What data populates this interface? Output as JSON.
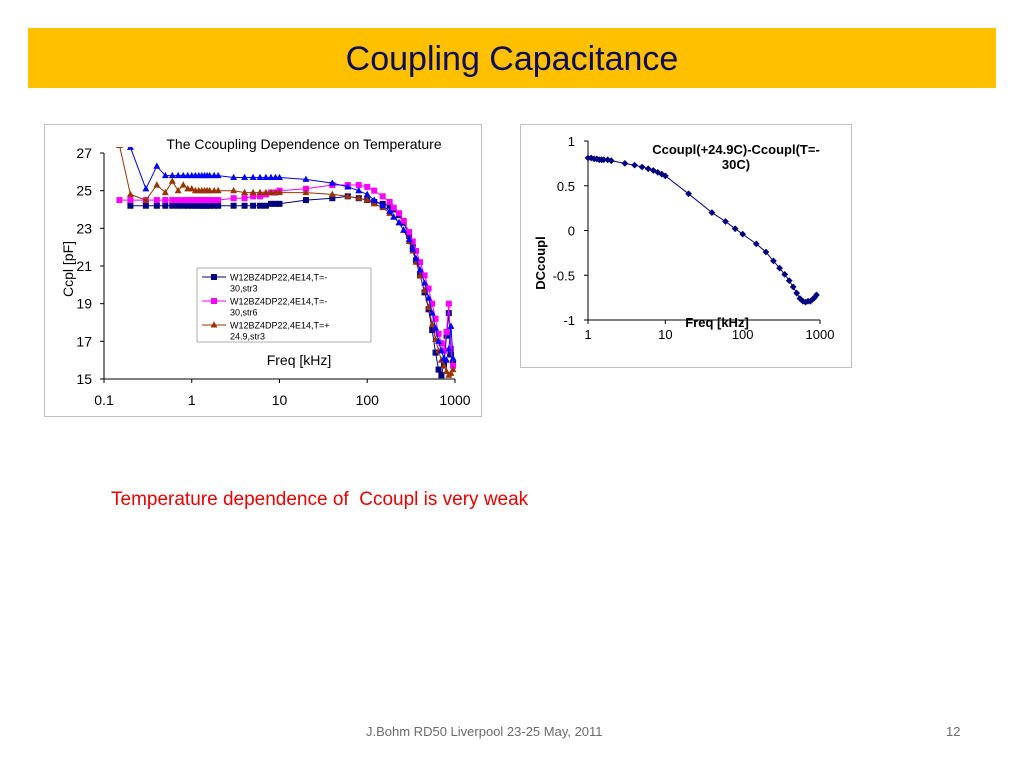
{
  "slide": {
    "title": "Coupling Capacitance",
    "caption": "Temperature dependence of  Ccoupl is very weak",
    "footer": "J.Bohm RD50 Liverpool 23-25 May, 2011",
    "page_number": "12"
  },
  "chart_data": [
    {
      "type": "scatter",
      "title": "The Ccoupling Dependence on Temperature",
      "xlabel": "Freq [kHz]",
      "ylabel": "Ccpl [pF]",
      "x_scale": "log",
      "xlim": [
        0.1,
        1000
      ],
      "ylim": [
        15,
        27
      ],
      "x_ticks": [
        "0.1",
        "1",
        "10",
        "100",
        "1000"
      ],
      "y_ticks": [
        "15",
        "17",
        "19",
        "21",
        "23",
        "25",
        "27"
      ],
      "grid": false,
      "legend_position": "center",
      "series": [
        {
          "name": "W12BZ4DP22,4E14,T=-30,str3",
          "color": "#000080",
          "marker": "square",
          "x": [
            0.2,
            0.3,
            0.4,
            0.5,
            0.6,
            0.7,
            0.8,
            0.9,
            1,
            1.1,
            1.2,
            1.3,
            1.4,
            1.5,
            1.6,
            1.8,
            2,
            3,
            4,
            5,
            6,
            7,
            8,
            9,
            10,
            20,
            40,
            60,
            80,
            100,
            120,
            150,
            180,
            200,
            230,
            260,
            300,
            330,
            360,
            400,
            450,
            500,
            550,
            600,
            650,
            700,
            750,
            800,
            850,
            900,
            950
          ],
          "y": [
            24.2,
            24.2,
            24.2,
            24.2,
            24.2,
            24.2,
            24.2,
            24.2,
            24.2,
            24.2,
            24.2,
            24.2,
            24.2,
            24.2,
            24.2,
            24.2,
            24.2,
            24.2,
            24.2,
            24.2,
            24.2,
            24.2,
            24.3,
            24.3,
            24.3,
            24.5,
            24.6,
            24.7,
            24.6,
            24.5,
            24.4,
            24.3,
            24.2,
            24.0,
            23.7,
            23.3,
            22.6,
            22.0,
            21.3,
            20.5,
            19.6,
            18.7,
            17.6,
            16.4,
            15.5,
            15.2,
            15.8,
            17.3,
            18.5,
            16.3,
            15.8
          ]
        },
        {
          "name": "W12BZ4DP22,4E14,T=-30,str6",
          "color": "#ff00ff",
          "marker": "square",
          "x": [
            0.15,
            0.2,
            0.3,
            0.4,
            0.5,
            0.6,
            0.7,
            0.8,
            0.9,
            1,
            1.1,
            1.2,
            1.3,
            1.4,
            1.5,
            1.6,
            1.8,
            2,
            3,
            4,
            5,
            6,
            7,
            8,
            9,
            10,
            20,
            40,
            60,
            80,
            100,
            120,
            150,
            180,
            200,
            230,
            260,
            300,
            330,
            360,
            400,
            450,
            500,
            550,
            600,
            650,
            700,
            750,
            800,
            850,
            900,
            950
          ],
          "y": [
            24.5,
            24.5,
            24.5,
            24.5,
            24.5,
            24.5,
            24.5,
            24.5,
            24.5,
            24.5,
            24.5,
            24.5,
            24.5,
            24.5,
            24.5,
            24.5,
            24.5,
            24.5,
            24.6,
            24.6,
            24.7,
            24.7,
            24.8,
            24.9,
            24.9,
            25.0,
            25.1,
            25.3,
            25.3,
            25.3,
            25.2,
            25.0,
            24.7,
            24.4,
            24.1,
            23.8,
            23.4,
            22.8,
            22.3,
            21.8,
            21.2,
            20.5,
            19.8,
            19.0,
            18.2,
            17.4,
            16.9,
            16.5,
            17.5,
            19.0,
            16.6,
            15.7
          ]
        },
        {
          "name": "W12BZ4DP22,4E14,T=+24.9,str3",
          "color": "#993300",
          "marker": "triangle",
          "x": [
            0.15,
            0.2,
            0.3,
            0.4,
            0.5,
            0.6,
            0.7,
            0.8,
            0.9,
            1,
            1.1,
            1.2,
            1.3,
            1.4,
            1.5,
            1.6,
            1.8,
            2,
            3,
            4,
            5,
            6,
            7,
            8,
            9,
            10,
            20,
            40,
            60,
            80,
            100,
            120,
            150,
            180,
            200,
            230,
            260,
            300,
            330,
            360,
            400,
            450,
            500,
            550,
            600,
            650,
            700,
            750,
            800,
            850,
            900,
            950
          ],
          "y": [
            27.4,
            24.8,
            24.5,
            25.3,
            24.9,
            25.5,
            25.0,
            25.3,
            25.1,
            25.1,
            25.0,
            25.0,
            25.0,
            25.0,
            25.0,
            25.0,
            25.0,
            25.0,
            25.0,
            24.9,
            24.9,
            24.9,
            24.9,
            24.9,
            24.9,
            24.9,
            24.9,
            24.8,
            24.7,
            24.6,
            24.5,
            24.3,
            24.1,
            23.8,
            23.6,
            23.3,
            22.9,
            22.3,
            21.8,
            21.2,
            20.5,
            19.7,
            18.8,
            17.9,
            17.1,
            16.5,
            16.0,
            15.7,
            15.4,
            15.2,
            15.3,
            15.5
          ]
        },
        {
          "name": "",
          "color": "#0000ff",
          "marker": "triangle",
          "x": [
            0.2,
            0.3,
            0.4,
            0.5,
            0.6,
            0.7,
            0.8,
            0.9,
            1,
            1.1,
            1.2,
            1.3,
            1.4,
            1.5,
            1.6,
            1.8,
            2,
            3,
            4,
            5,
            6,
            7,
            8,
            9,
            10,
            20,
            40,
            60,
            80,
            100,
            120,
            150,
            180,
            200,
            230,
            260,
            300,
            330,
            360,
            400,
            450,
            500,
            550,
            600,
            650,
            700,
            750,
            800,
            850,
            900,
            950
          ],
          "y": [
            27.3,
            25.1,
            26.3,
            25.8,
            25.8,
            25.8,
            25.8,
            25.8,
            25.8,
            25.8,
            25.8,
            25.8,
            25.8,
            25.8,
            25.8,
            25.8,
            25.8,
            25.7,
            25.7,
            25.7,
            25.7,
            25.7,
            25.7,
            25.7,
            25.7,
            25.6,
            25.4,
            25.2,
            25.0,
            24.8,
            24.5,
            24.2,
            23.9,
            23.6,
            23.3,
            22.9,
            22.4,
            21.9,
            21.4,
            20.8,
            20.1,
            19.3,
            18.5,
            17.7,
            17.0,
            16.5,
            16.1,
            16.0,
            16.6,
            17.8,
            16.1
          ]
        }
      ]
    },
    {
      "type": "line",
      "title": "Ccoupl(+24.9C)-Ccoupl(T=-30C)",
      "xlabel": "Freq [kHz]",
      "ylabel": "DCcoupl",
      "x_scale": "log",
      "xlim": [
        1,
        1000
      ],
      "ylim": [
        -1,
        1
      ],
      "x_ticks": [
        "1",
        "10",
        "100",
        "1000"
      ],
      "y_ticks": [
        "1",
        "0.5",
        "0",
        "-0.5",
        "-1"
      ],
      "grid": false,
      "series": [
        {
          "name": "",
          "color": "#000080",
          "marker": "diamond",
          "x": [
            1.0,
            1.1,
            1.2,
            1.3,
            1.4,
            1.5,
            1.6,
            1.8,
            2.0,
            3.0,
            4.0,
            5.0,
            6.0,
            7.0,
            8.0,
            9.0,
            10,
            20,
            40,
            60,
            80,
            100,
            150,
            200,
            250,
            300,
            350,
            400,
            450,
            500,
            550,
            600,
            650,
            700,
            750,
            800,
            850,
            900
          ],
          "y": [
            0.81,
            0.81,
            0.8,
            0.8,
            0.79,
            0.79,
            0.79,
            0.79,
            0.78,
            0.75,
            0.73,
            0.71,
            0.69,
            0.67,
            0.65,
            0.63,
            0.61,
            0.41,
            0.2,
            0.1,
            0.02,
            -0.04,
            -0.15,
            -0.24,
            -0.34,
            -0.42,
            -0.49,
            -0.56,
            -0.63,
            -0.7,
            -0.76,
            -0.79,
            -0.8,
            -0.79,
            -0.79,
            -0.77,
            -0.75,
            -0.72
          ]
        }
      ]
    }
  ]
}
